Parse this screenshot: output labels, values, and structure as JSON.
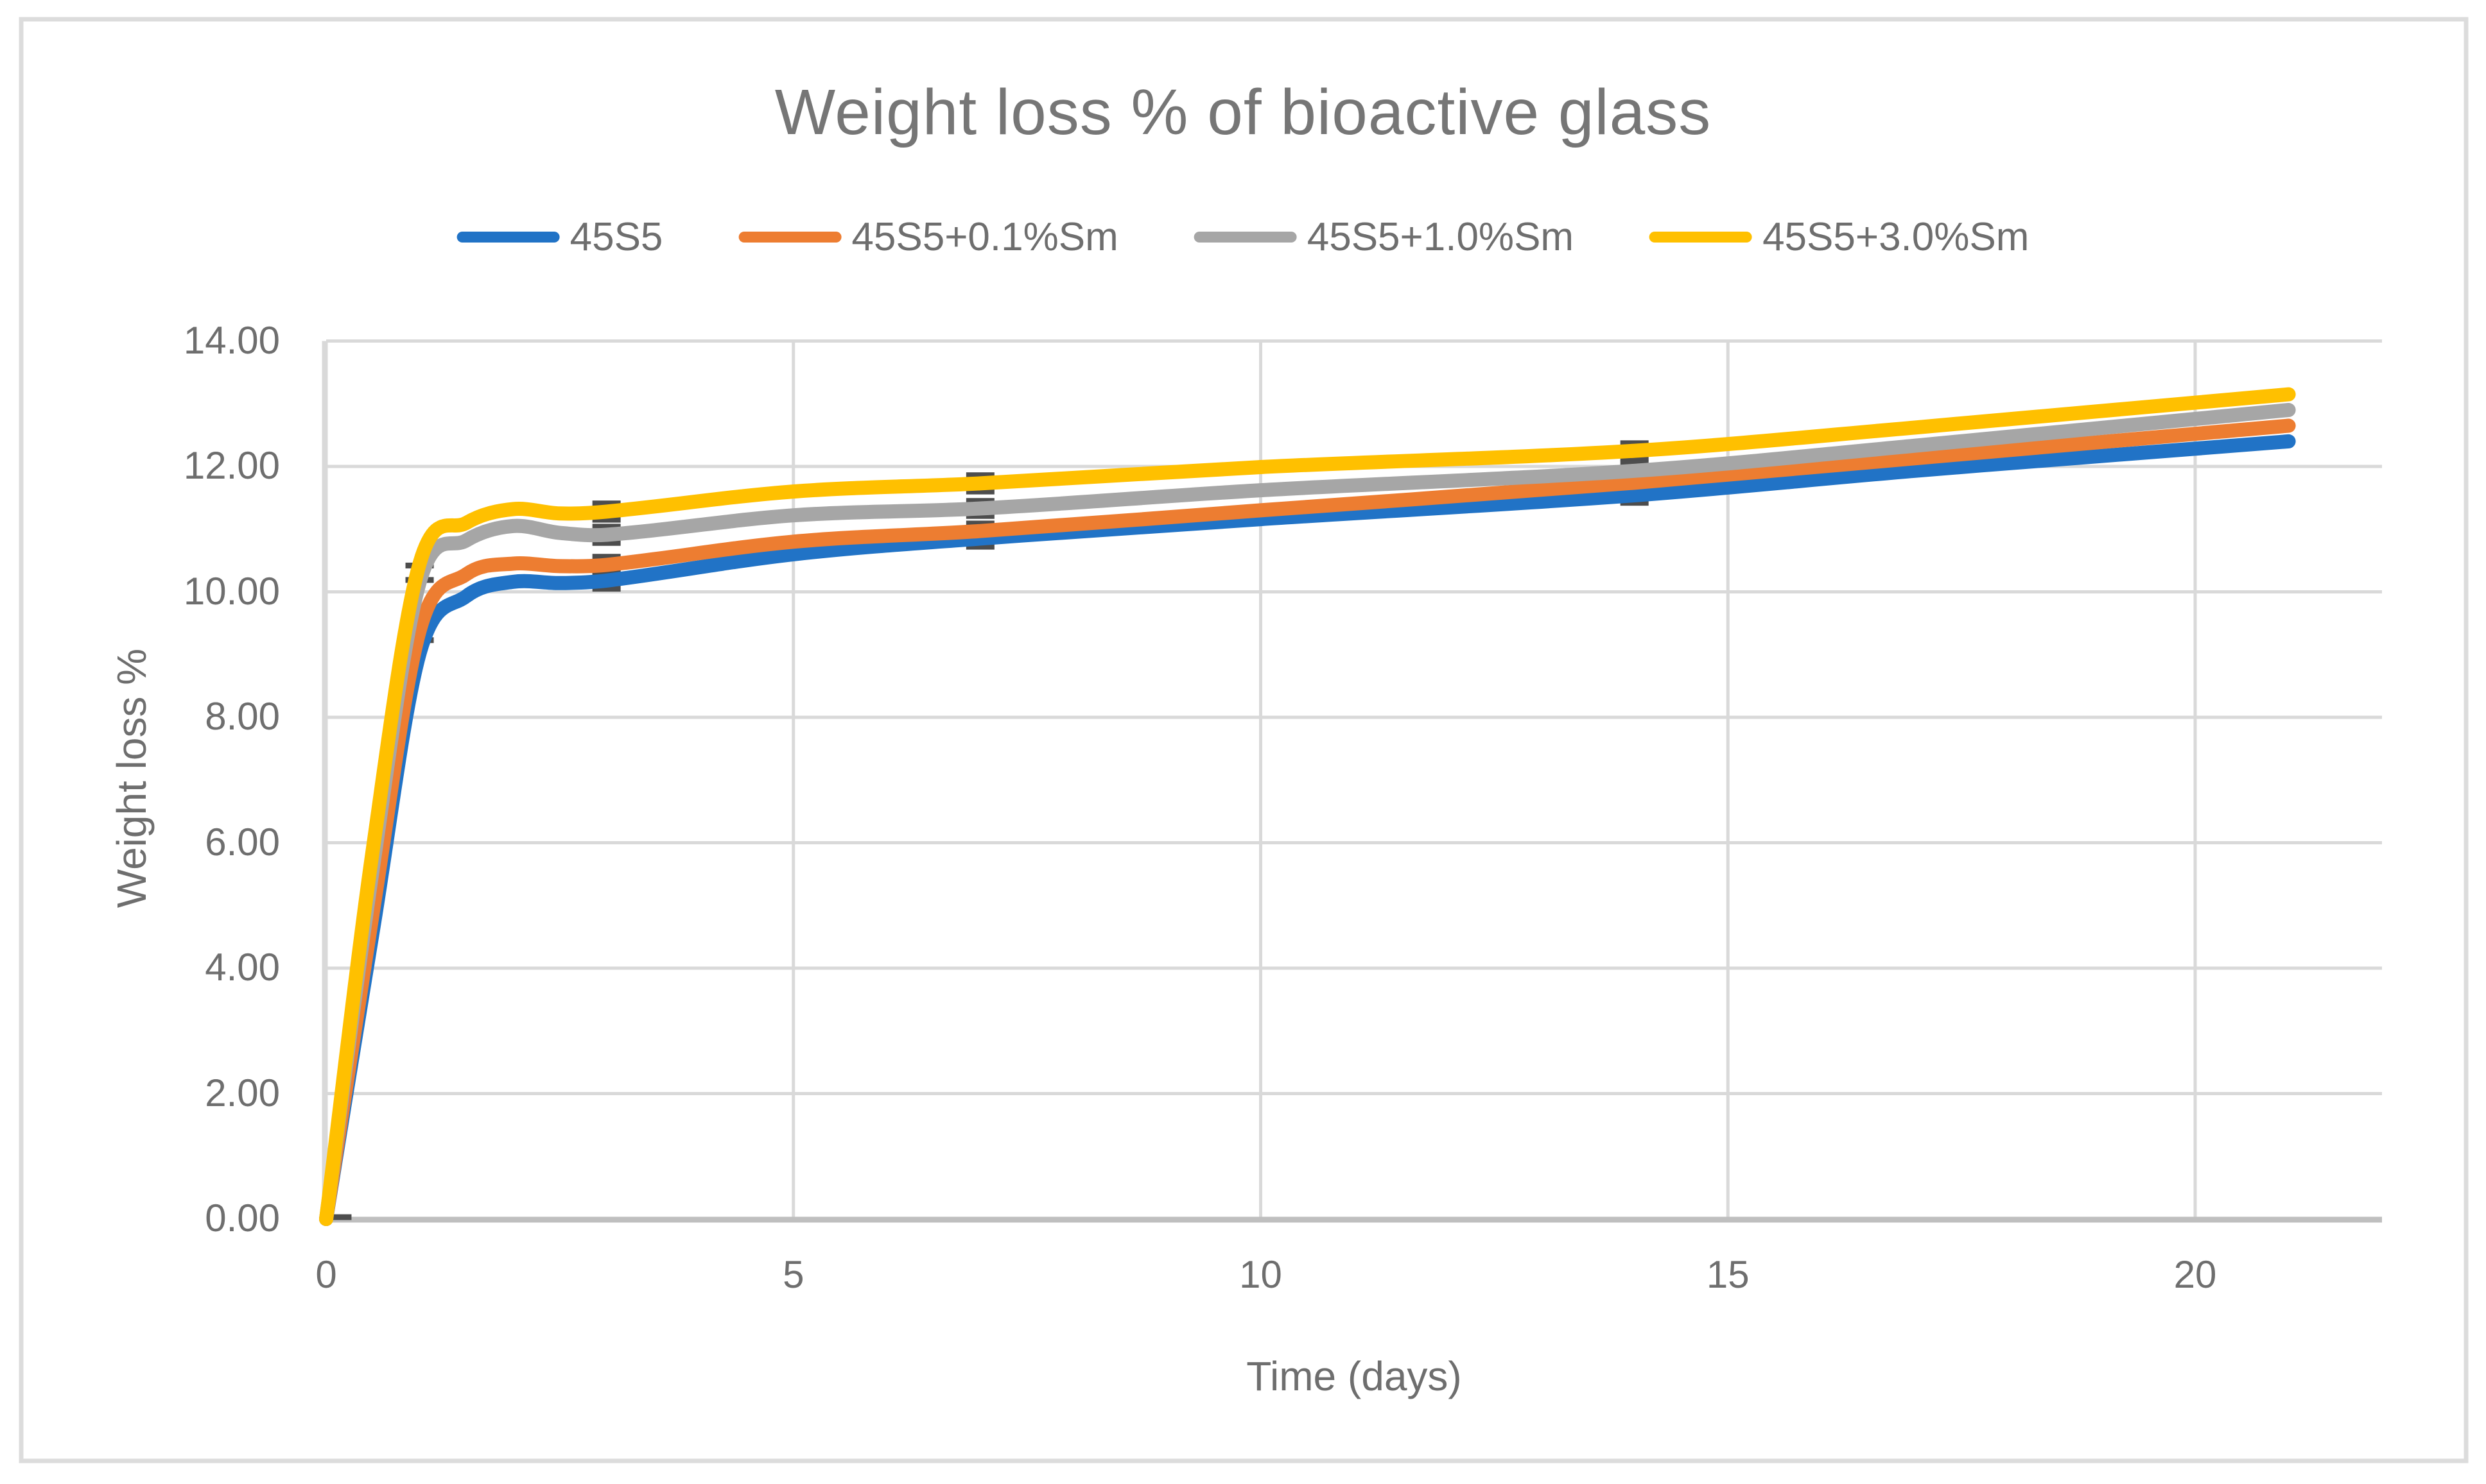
{
  "figure": {
    "title": "Weight loss % of bioactive glass",
    "background": "#FFFFFF",
    "border_color": "#DCDCDC"
  },
  "chart_data": {
    "type": "line",
    "title": "Weight loss % of bioactive glass",
    "xlabel": "Time (days)",
    "ylabel": "Weight loss %",
    "xlim": [
      0,
      22
    ],
    "ylim": [
      0,
      14
    ],
    "x_ticks": [
      0,
      5,
      10,
      15,
      20
    ],
    "y_ticks": [
      0,
      2,
      4,
      6,
      8,
      10,
      12,
      14
    ],
    "y_tick_decimals": 2,
    "grid": true,
    "legend_position": "top",
    "categories_days": [
      0,
      1,
      2,
      3,
      7,
      14,
      21
    ],
    "series": [
      {
        "name": "45S5",
        "color": "#2173C6",
        "values": [
          0,
          9.0,
          10.16,
          10.18,
          10.85,
          11.54,
          12.4
        ],
        "spline": [
          [
            0,
            0
          ],
          [
            0.5,
            4.6
          ],
          [
            1,
            9.02
          ],
          [
            1.5,
            9.93
          ],
          [
            2,
            10.16
          ],
          [
            2.5,
            10.14
          ],
          [
            3,
            10.18
          ],
          [
            5,
            10.6
          ],
          [
            7,
            10.85
          ],
          [
            10,
            11.16
          ],
          [
            14,
            11.54
          ],
          [
            17,
            11.93
          ],
          [
            21,
            12.4
          ]
        ]
      },
      {
        "name": "45S5+0.1%Sm",
        "color": "#ED7D31",
        "values": [
          0,
          9.4,
          10.45,
          10.43,
          10.97,
          11.74,
          12.65
        ],
        "spline": [
          [
            0,
            0
          ],
          [
            0.5,
            4.9
          ],
          [
            1,
            9.38
          ],
          [
            1.5,
            10.28
          ],
          [
            2,
            10.45
          ],
          [
            2.5,
            10.41
          ],
          [
            3,
            10.43
          ],
          [
            5,
            10.8
          ],
          [
            7,
            10.97
          ],
          [
            10,
            11.3
          ],
          [
            14,
            11.74
          ],
          [
            17,
            12.13
          ],
          [
            21,
            12.65
          ]
        ]
      },
      {
        "name": "45S5+1.0%Sm",
        "color": "#A6A6A6",
        "values": [
          0,
          10.15,
          11.05,
          10.91,
          11.33,
          11.93,
          12.9
        ],
        "spline": [
          [
            0,
            0
          ],
          [
            0.5,
            5.6
          ],
          [
            1,
            10.15
          ],
          [
            1.5,
            10.82
          ],
          [
            2,
            11.05
          ],
          [
            2.5,
            10.94
          ],
          [
            3,
            10.91
          ],
          [
            5,
            11.22
          ],
          [
            7,
            11.33
          ],
          [
            10,
            11.62
          ],
          [
            14,
            11.93
          ],
          [
            17,
            12.33
          ],
          [
            21,
            12.9
          ]
        ]
      },
      {
        "name": "45S5+3.0%Sm",
        "color": "#FFC000",
        "values": [
          0,
          10.45,
          11.32,
          11.28,
          11.73,
          12.25,
          13.15
        ],
        "spline": [
          [
            0,
            0
          ],
          [
            0.5,
            5.9
          ],
          [
            1,
            10.45
          ],
          [
            1.5,
            11.1
          ],
          [
            2,
            11.32
          ],
          [
            2.5,
            11.25
          ],
          [
            3,
            11.28
          ],
          [
            5,
            11.6
          ],
          [
            7,
            11.73
          ],
          [
            10,
            11.99
          ],
          [
            14,
            12.25
          ],
          [
            17,
            12.62
          ],
          [
            21,
            13.15
          ]
        ]
      }
    ],
    "error_caps": [
      {
        "day": 0.12,
        "value": 0.03
      },
      {
        "day": 1,
        "value": 10.42
      },
      {
        "day": 1,
        "value": 10.19
      },
      {
        "day": 1,
        "value": 9.45
      },
      {
        "day": 1,
        "value": 9.23
      },
      {
        "day": 3,
        "value": 11.41
      },
      {
        "day": 3,
        "value": 11.15
      },
      {
        "day": 3,
        "value": 11.04
      },
      {
        "day": 3,
        "value": 10.78
      },
      {
        "day": 3,
        "value": 10.56
      },
      {
        "day": 3,
        "value": 10.3
      },
      {
        "day": 3,
        "value": 10.31
      },
      {
        "day": 3,
        "value": 10.05
      },
      {
        "day": 7,
        "value": 11.86
      },
      {
        "day": 7,
        "value": 11.6
      },
      {
        "day": 7,
        "value": 11.45
      },
      {
        "day": 7,
        "value": 11.21
      },
      {
        "day": 7,
        "value": 11.09
      },
      {
        "day": 7,
        "value": 10.85
      },
      {
        "day": 7,
        "value": 10.98
      },
      {
        "day": 7,
        "value": 10.72
      },
      {
        "day": 14,
        "value": 12.37
      },
      {
        "day": 14,
        "value": 12.13
      },
      {
        "day": 14,
        "value": 12.05
      },
      {
        "day": 14,
        "value": 11.81
      },
      {
        "day": 14,
        "value": 11.86
      },
      {
        "day": 14,
        "value": 11.62
      },
      {
        "day": 14,
        "value": 11.66
      },
      {
        "day": 14,
        "value": 11.42
      }
    ]
  },
  "style": {
    "grid_color": "#D9D9D9",
    "left_axis_color": "#D9D9D9",
    "bottom_axis_color": "#BFBFBF",
    "error_cap_color": "#4D4D4D",
    "tick_text_color": "#6E6E6E",
    "title_color": "#767676",
    "line_width": 22,
    "error_cap_width": 44,
    "error_cap_height": 9
  }
}
